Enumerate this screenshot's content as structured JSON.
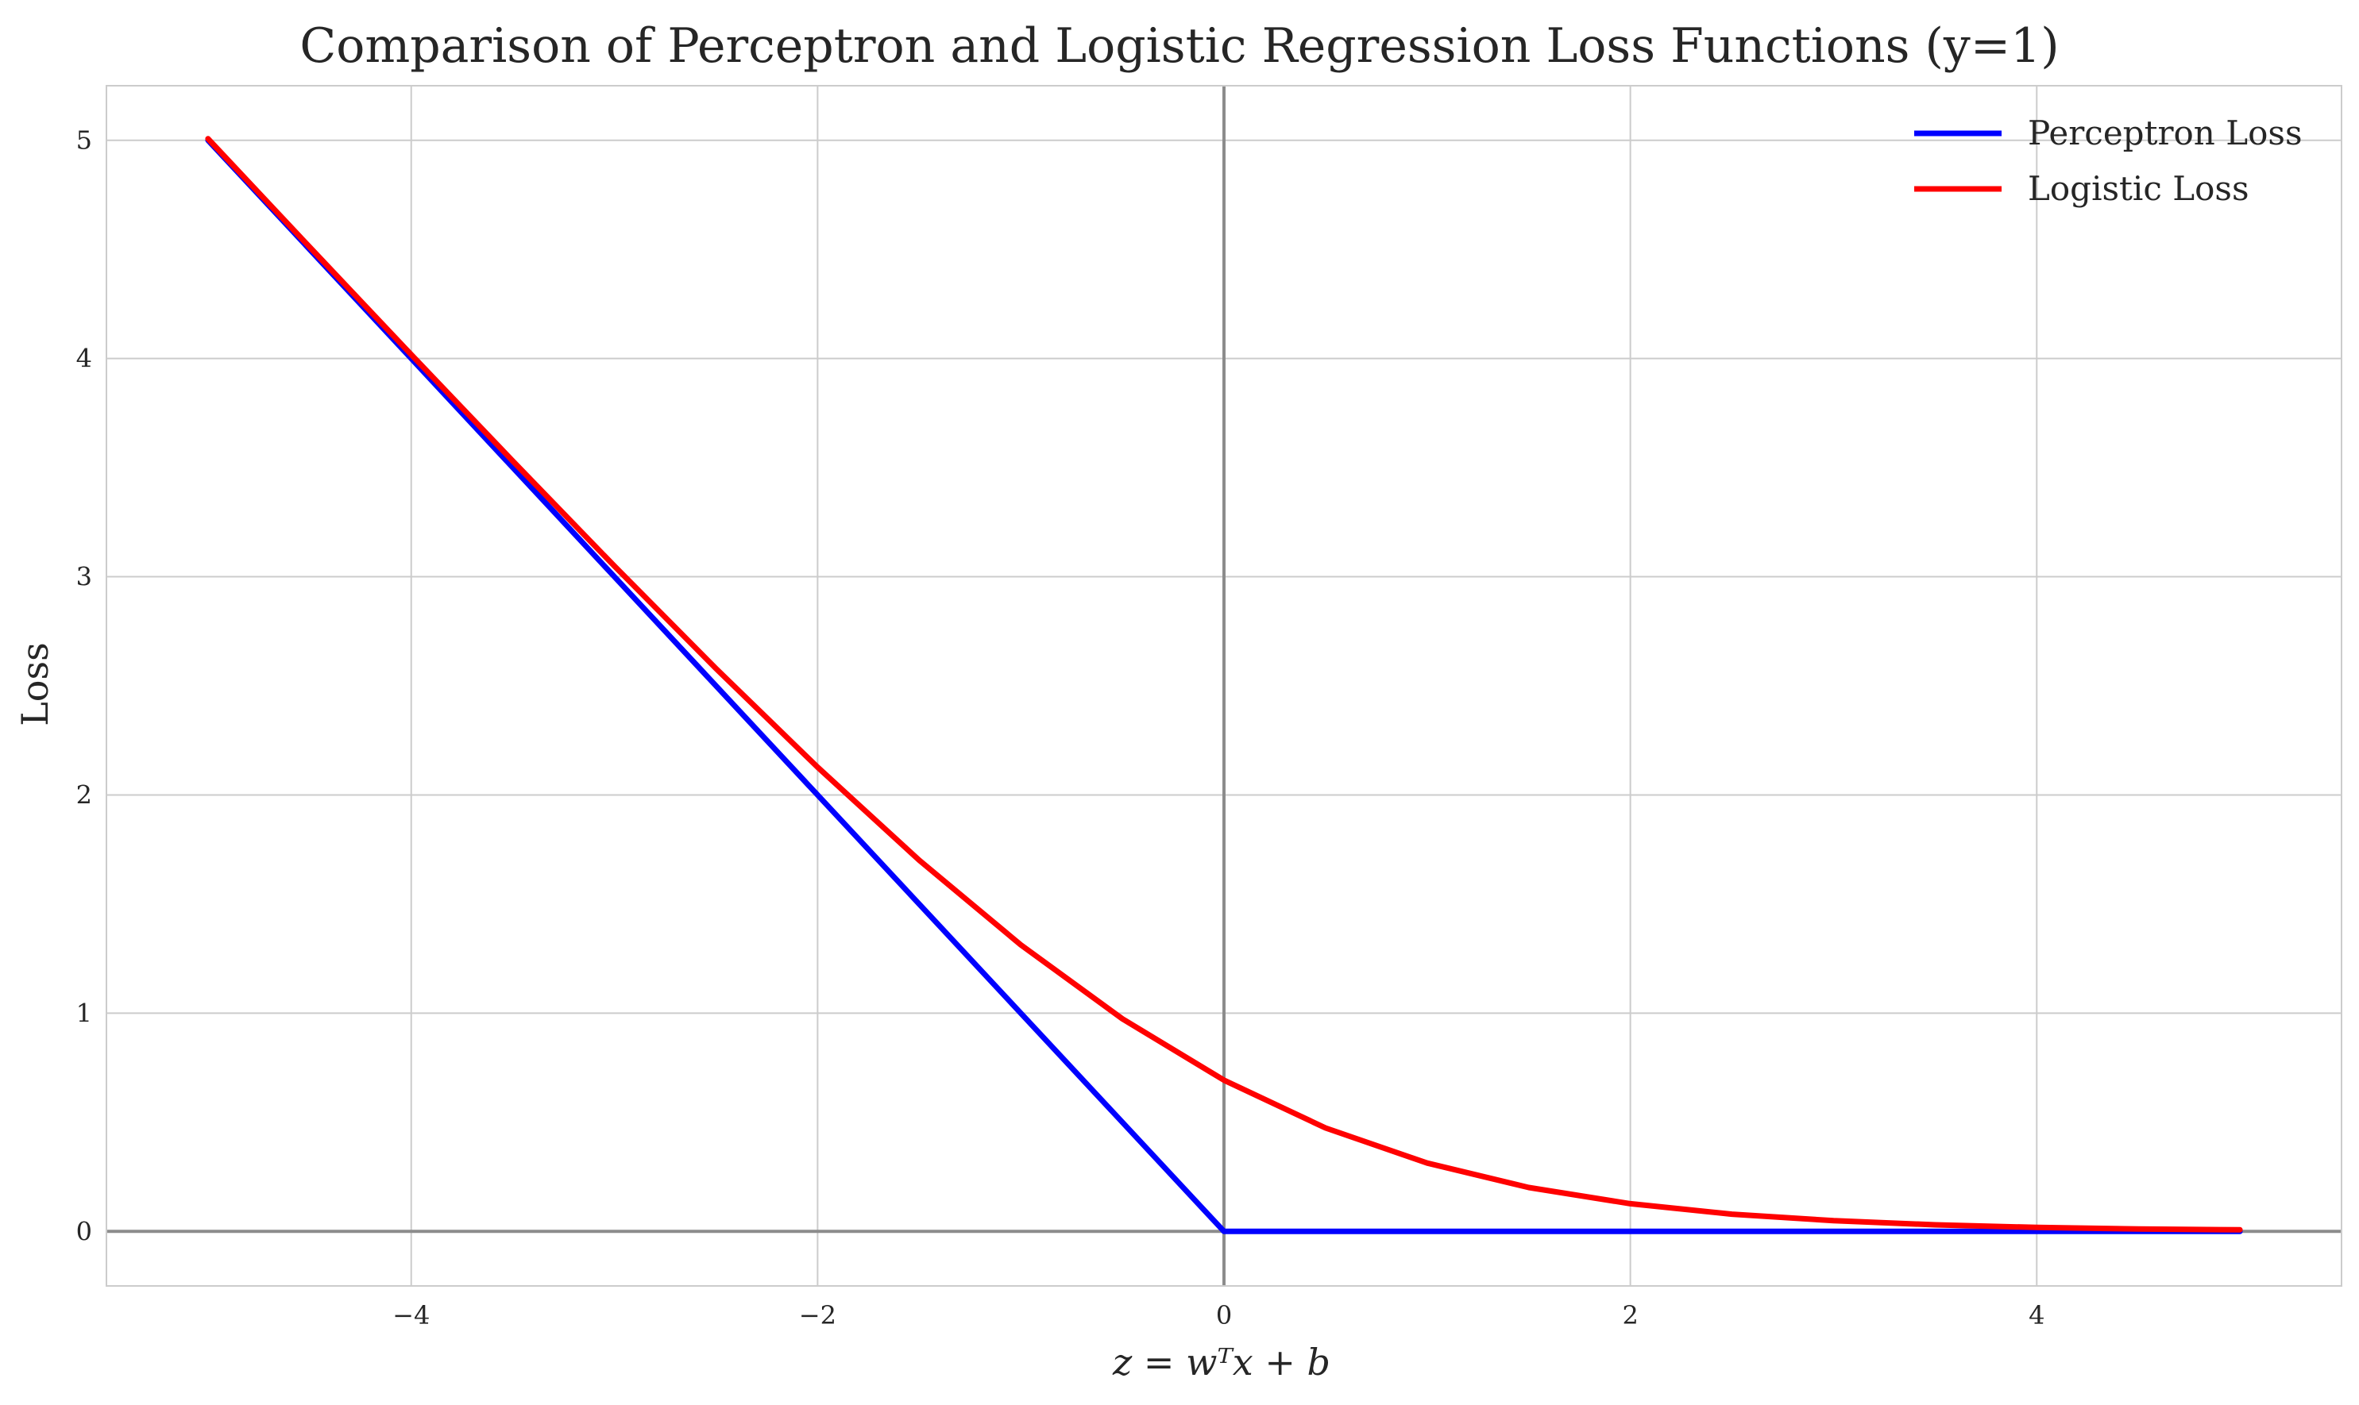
{
  "chart_data": {
    "type": "line",
    "title": "Comparison of Perceptron and Logistic Regression Loss Functions (y=1)",
    "xlabel": "z = wᵀx + b",
    "ylabel": "Loss",
    "xlim": [
      -5.5,
      5.5
    ],
    "ylim": [
      -0.25,
      5.25
    ],
    "xticks": [
      -4,
      -2,
      0,
      2,
      4
    ],
    "xtick_labels": [
      "−4",
      "−2",
      "0",
      "2",
      "4"
    ],
    "yticks": [
      0,
      1,
      2,
      3,
      4,
      5
    ],
    "ytick_labels": [
      "0",
      "1",
      "2",
      "3",
      "4",
      "5"
    ],
    "grid": true,
    "reference_lines": {
      "x": 0,
      "y": 0,
      "color": "#8c8c8c"
    },
    "legend_position": "top-right",
    "series": [
      {
        "name": "Perceptron Loss",
        "color": "#0000ff",
        "x": [
          -5,
          0,
          5
        ],
        "y": [
          5,
          0,
          0
        ]
      },
      {
        "name": "Logistic Loss",
        "color": "#ff0000",
        "x": [
          -5,
          -4.5,
          -4,
          -3.5,
          -3,
          -2.5,
          -2,
          -1.5,
          -1,
          -0.5,
          0,
          0.5,
          1,
          1.5,
          2,
          2.5,
          3,
          3.5,
          4,
          4.5,
          5
        ],
        "y": [
          5.007,
          4.511,
          4.018,
          3.53,
          3.049,
          2.579,
          2.127,
          1.701,
          1.313,
          0.974,
          0.693,
          0.474,
          0.313,
          0.201,
          0.127,
          0.079,
          0.049,
          0.03,
          0.018,
          0.011,
          0.007
        ]
      }
    ]
  }
}
